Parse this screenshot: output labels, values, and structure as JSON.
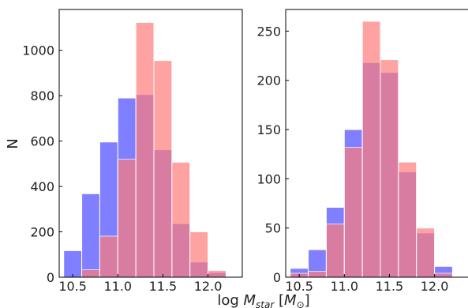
{
  "chart_data": [
    {
      "type": "bar",
      "panel": "left",
      "ylabel": "N",
      "xlim": [
        10.35,
        12.38
      ],
      "ylim": [
        0,
        1180
      ],
      "xticks": [
        10.5,
        11.0,
        11.5,
        12.0
      ],
      "xtick_labels": [
        "10.5",
        "11.0",
        "11.5",
        "12.0"
      ],
      "yticks": [
        0,
        200,
        400,
        600,
        800,
        1000
      ],
      "bin_edges_blue": [
        10.4,
        10.6,
        10.8,
        11.0,
        11.2,
        11.4,
        11.6,
        11.8,
        12.0,
        12.2
      ],
      "bin_edges_red": [
        10.6,
        10.8,
        11.0,
        11.2,
        11.4,
        11.6,
        11.8,
        12.0,
        12.2
      ],
      "series": [
        {
          "color": "#7b7bff",
          "values": [
            117,
            368,
            596,
            790,
            805,
            562,
            236,
            67,
            21
          ]
        },
        {
          "color": "#ff7b7b",
          "values": [
            33,
            181,
            520,
            1123,
            955,
            507,
            200,
            30
          ]
        }
      ],
      "grid": false
    },
    {
      "type": "bar",
      "panel": "right",
      "xlim": [
        10.35,
        12.38
      ],
      "ylim": [
        0,
        272
      ],
      "xticks": [
        10.5,
        11.0,
        11.5,
        12.0
      ],
      "xtick_labels": [
        "10.5",
        "11.0",
        "11.5",
        "12.0"
      ],
      "yticks": [
        0,
        50,
        100,
        150,
        200,
        250
      ],
      "bin_edges_blue": [
        10.4,
        10.6,
        10.8,
        11.0,
        11.2,
        11.4,
        11.6,
        11.8,
        12.0,
        12.2
      ],
      "bin_edges_red": [
        10.4,
        10.6,
        10.8,
        11.0,
        11.2,
        11.4,
        11.6,
        11.8,
        12.0,
        12.2
      ],
      "series": [
        {
          "color": "#7b7bff",
          "values": [
            9,
            28,
            71,
            150,
            218,
            208,
            107,
            45,
            11
          ]
        },
        {
          "color": "#ff7b7b",
          "values": [
            4,
            6,
            54,
            132,
            260,
            221,
            117,
            50,
            4
          ]
        }
      ],
      "grid": false
    }
  ],
  "figure": {
    "xlabel": "log M_star [M_⊙]",
    "xlabel_parts": {
      "prefix": "log ",
      "main": "M",
      "sub": "star",
      "bracket_open": " [",
      "inner": "M",
      "inner_sub": "⊙",
      "bracket_close": "]"
    }
  }
}
